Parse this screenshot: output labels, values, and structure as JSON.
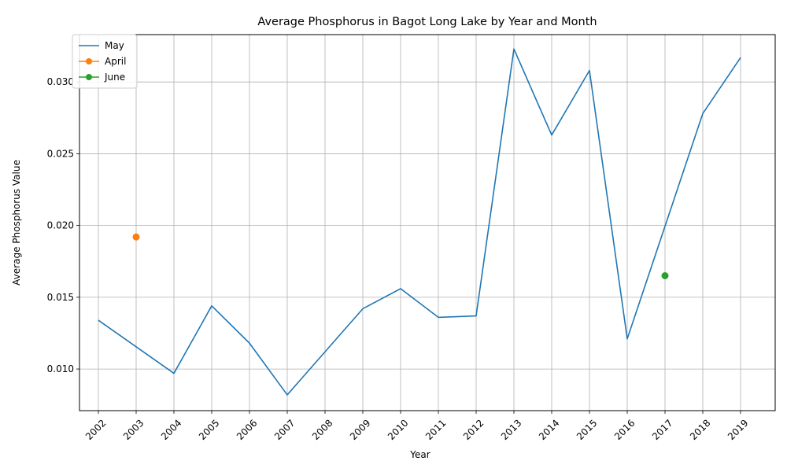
{
  "chart_data": {
    "type": "line",
    "title": "Average Phosphorus in Bagot Long Lake by Year and Month",
    "xlabel": "Year",
    "ylabel": "Average Phosphorus Value",
    "categories": [
      "2002",
      "2003",
      "2004",
      "2005",
      "2006",
      "2007",
      "2008",
      "2009",
      "2010",
      "2011",
      "2012",
      "2013",
      "2014",
      "2015",
      "2016",
      "2017",
      "2018",
      "2019"
    ],
    "ylim": [
      0.0071,
      0.0333
    ],
    "yticks": [
      "0.010",
      "0.015",
      "0.020",
      "0.025",
      "0.030"
    ],
    "ytick_values": [
      0.01,
      0.015,
      0.02,
      0.025,
      0.03
    ],
    "grid": true,
    "legend_position": "top-left",
    "series": [
      {
        "name": "May",
        "color": "#1f77b4",
        "marker": false,
        "points": [
          {
            "x": "2002",
            "y": 0.0134
          },
          {
            "x": "2004",
            "y": 0.0097
          },
          {
            "x": "2005",
            "y": 0.0144
          },
          {
            "x": "2006",
            "y": 0.0118
          },
          {
            "x": "2007",
            "y": 0.0082
          },
          {
            "x": "2009",
            "y": 0.0142
          },
          {
            "x": "2010",
            "y": 0.0156
          },
          {
            "x": "2011",
            "y": 0.0136
          },
          {
            "x": "2012",
            "y": 0.0137
          },
          {
            "x": "2013",
            "y": 0.0323
          },
          {
            "x": "2014",
            "y": 0.0263
          },
          {
            "x": "2015",
            "y": 0.0308
          },
          {
            "x": "2016",
            "y": 0.0121
          },
          {
            "x": "2018",
            "y": 0.0278
          },
          {
            "x": "2019",
            "y": 0.0317
          }
        ]
      },
      {
        "name": "April",
        "color": "#ff7f0e",
        "marker": true,
        "points": [
          {
            "x": "2003",
            "y": 0.0192
          }
        ]
      },
      {
        "name": "June",
        "color": "#2ca02c",
        "marker": true,
        "points": [
          {
            "x": "2017",
            "y": 0.0165
          }
        ]
      }
    ]
  }
}
